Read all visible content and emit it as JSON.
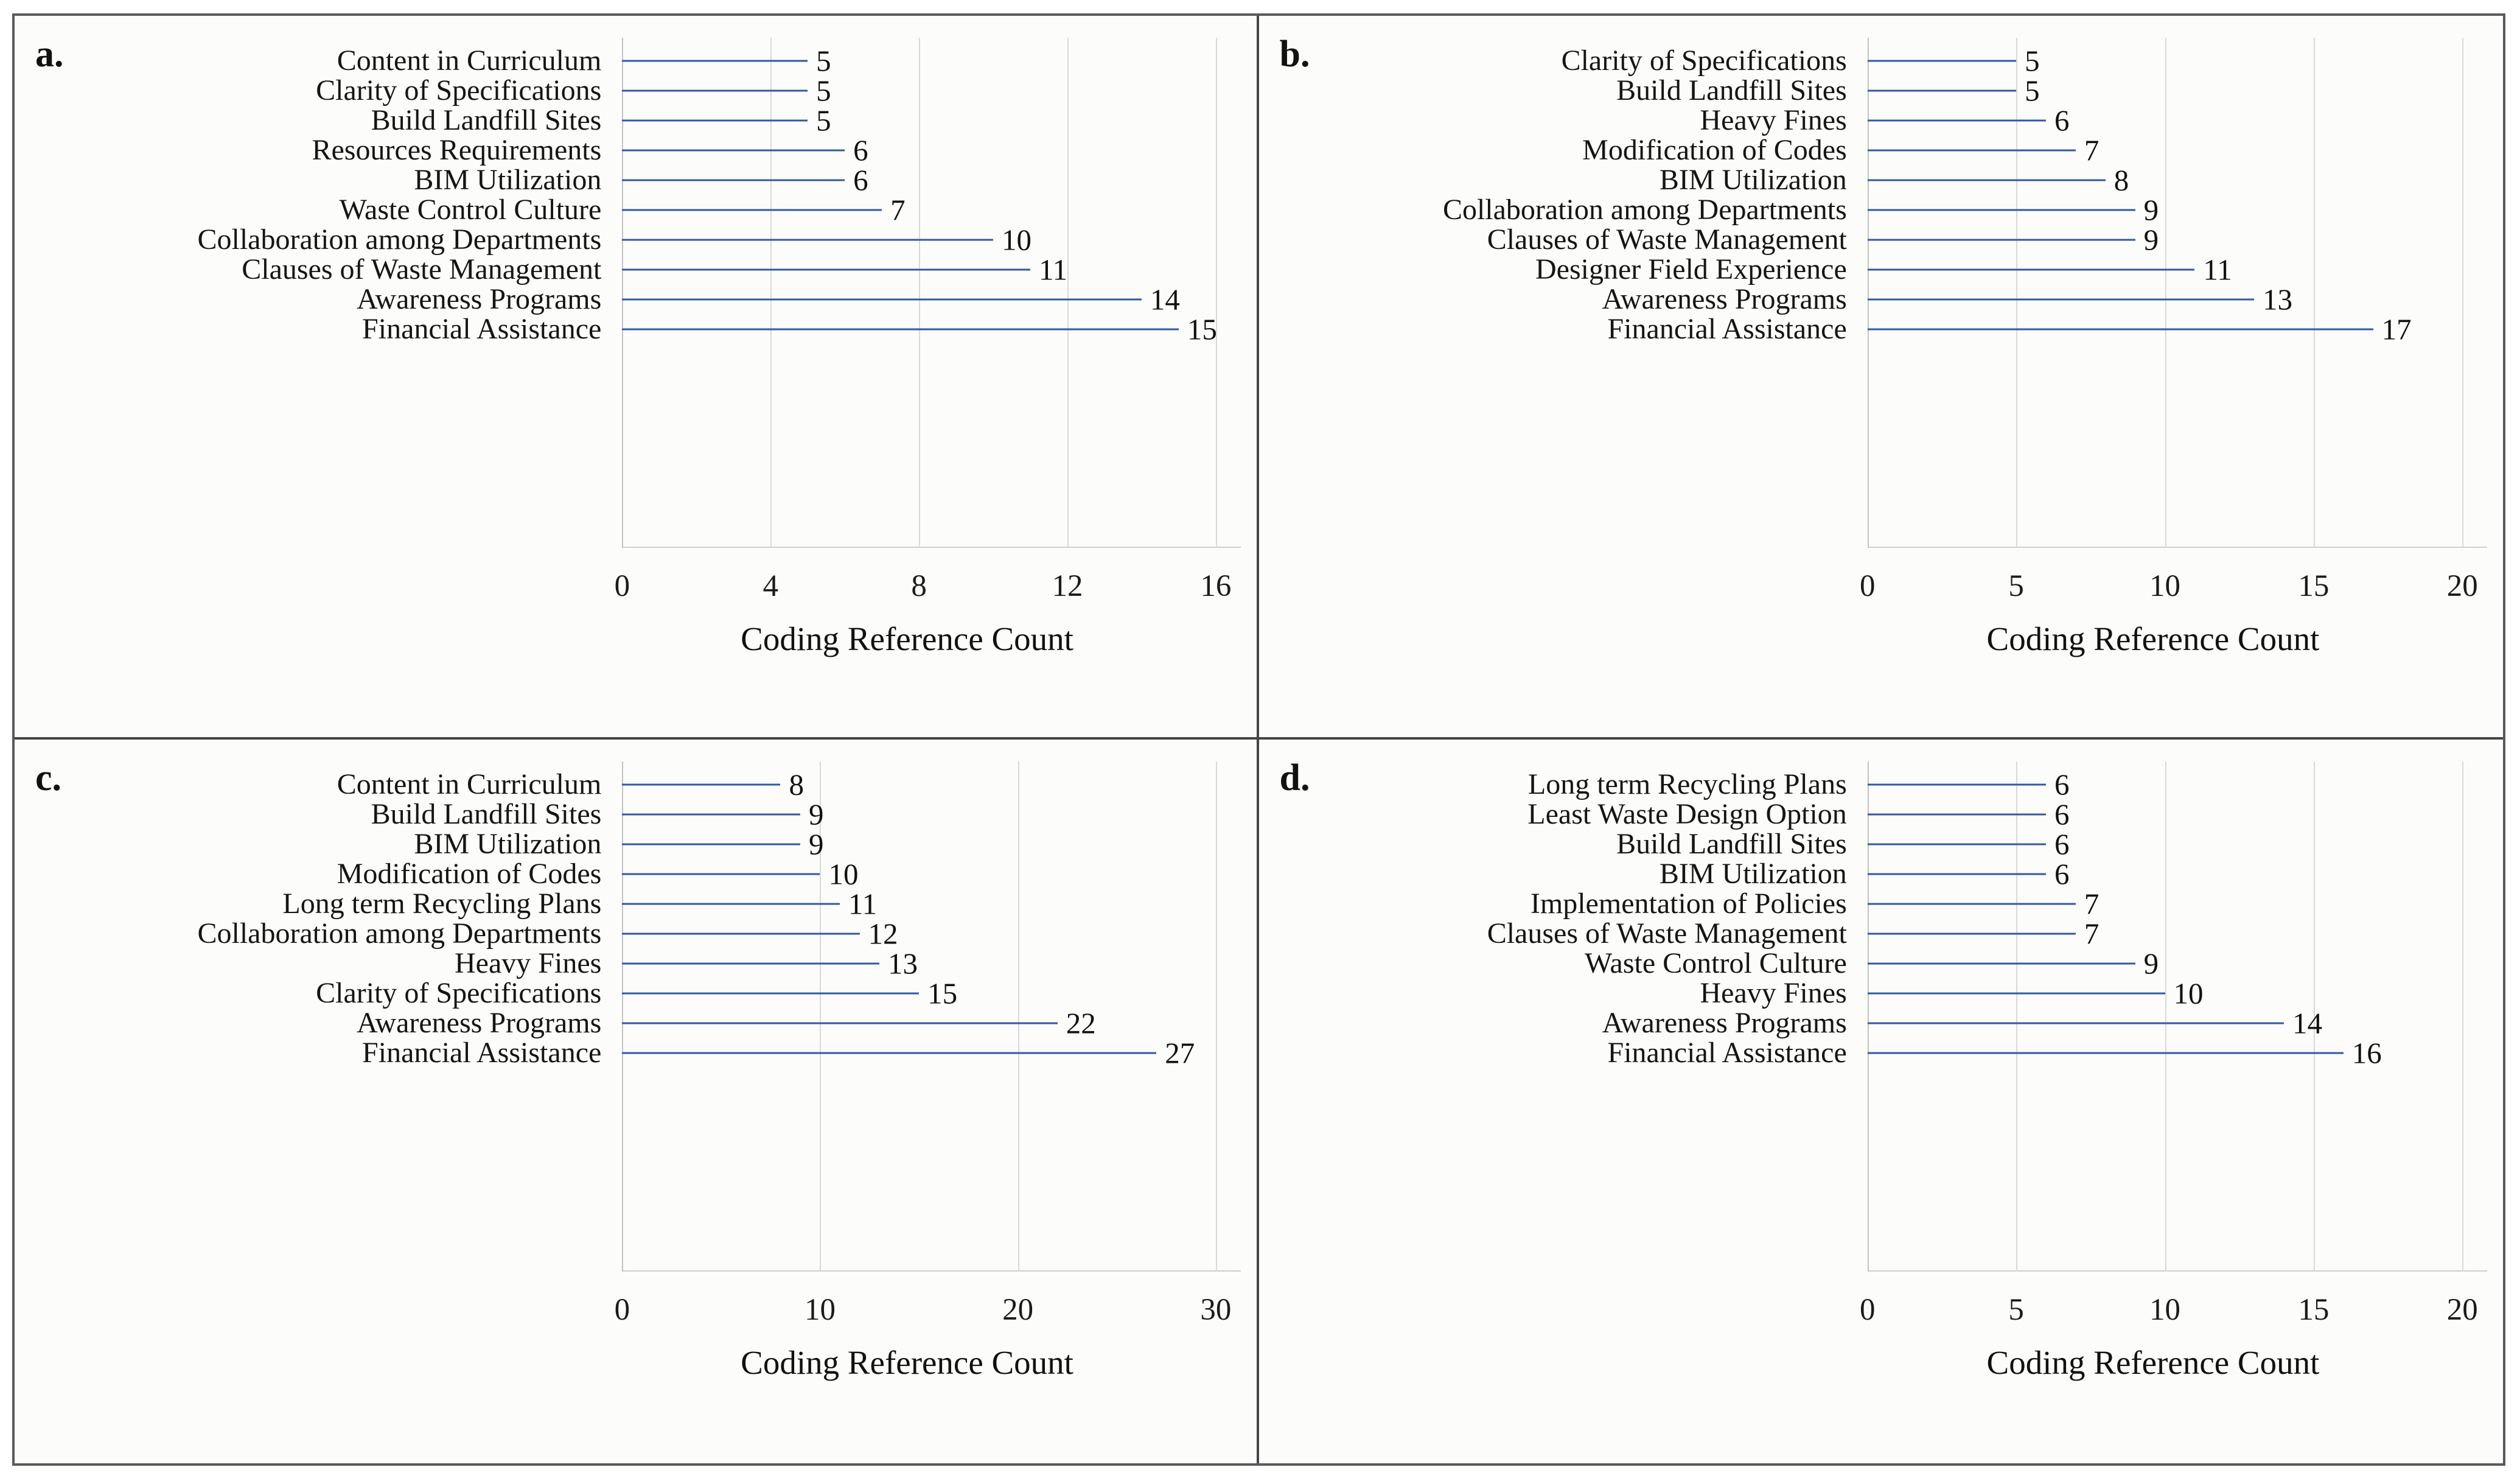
{
  "figure": {
    "bar_color": "#4472C4",
    "gridline_color": "#d9d9d9",
    "axis_line_color": "#c4c4c4",
    "border_color": "#555555",
    "text_color": "#1b1b1b"
  },
  "chart_data": [
    {
      "type": "bar",
      "orientation": "horizontal",
      "panel_label": "a.",
      "xlabel": "Coding Reference Count",
      "xlim": [
        0,
        16
      ],
      "xticks": [
        0,
        4,
        8,
        12,
        16
      ],
      "grid": true,
      "legend": false,
      "categories": [
        "Content in Curriculum",
        "Clarity of Specifications",
        "Build Landfill Sites",
        "Resources Requirements",
        "BIM Utilization",
        "Waste Control Culture",
        "Collaboration among Departments",
        "Clauses of Waste Management",
        "Awareness Programs",
        "Financial Assistance"
      ],
      "values": [
        5,
        5,
        5,
        6,
        6,
        7,
        10,
        11,
        14,
        15
      ]
    },
    {
      "type": "bar",
      "orientation": "horizontal",
      "panel_label": "b.",
      "xlabel": "Coding Reference Count",
      "xlim": [
        0,
        20
      ],
      "xticks": [
        0,
        5,
        10,
        15,
        20
      ],
      "grid": true,
      "legend": false,
      "categories": [
        "Clarity of Specifications",
        "Build Landfill Sites",
        "Heavy Fines",
        "Modification of Codes",
        "BIM Utilization",
        "Collaboration among Departments",
        "Clauses of Waste Management",
        "Designer Field Experience",
        "Awareness Programs",
        "Financial Assistance"
      ],
      "values": [
        5,
        5,
        6,
        7,
        8,
        9,
        9,
        11,
        13,
        17
      ]
    },
    {
      "type": "bar",
      "orientation": "horizontal",
      "panel_label": "c.",
      "xlabel": "Coding Reference Count",
      "xlim": [
        0,
        30
      ],
      "xticks": [
        0,
        10,
        20,
        30
      ],
      "grid": true,
      "legend": false,
      "categories": [
        "Content in Curriculum",
        "Build Landfill Sites",
        "BIM Utilization",
        "Modification of Codes",
        "Long term Recycling Plans",
        "Collaboration among Departments",
        "Heavy Fines",
        "Clarity of Specifications",
        "Awareness Programs",
        "Financial Assistance"
      ],
      "values": [
        8,
        9,
        9,
        10,
        11,
        12,
        13,
        15,
        22,
        27
      ]
    },
    {
      "type": "bar",
      "orientation": "horizontal",
      "panel_label": "d.",
      "xlabel": "Coding Reference Count",
      "xlim": [
        0,
        20
      ],
      "xticks": [
        0,
        5,
        10,
        15,
        20
      ],
      "grid": true,
      "legend": false,
      "categories": [
        "Long term Recycling Plans",
        "Least Waste Design Option",
        "Build Landfill Sites",
        "BIM Utilization",
        "Implementation of Policies",
        "Clauses of Waste Management",
        "Waste Control Culture",
        "Heavy Fines",
        "Awareness Programs",
        "Financial Assistance"
      ],
      "values": [
        6,
        6,
        6,
        6,
        7,
        7,
        9,
        10,
        14,
        16
      ]
    }
  ]
}
